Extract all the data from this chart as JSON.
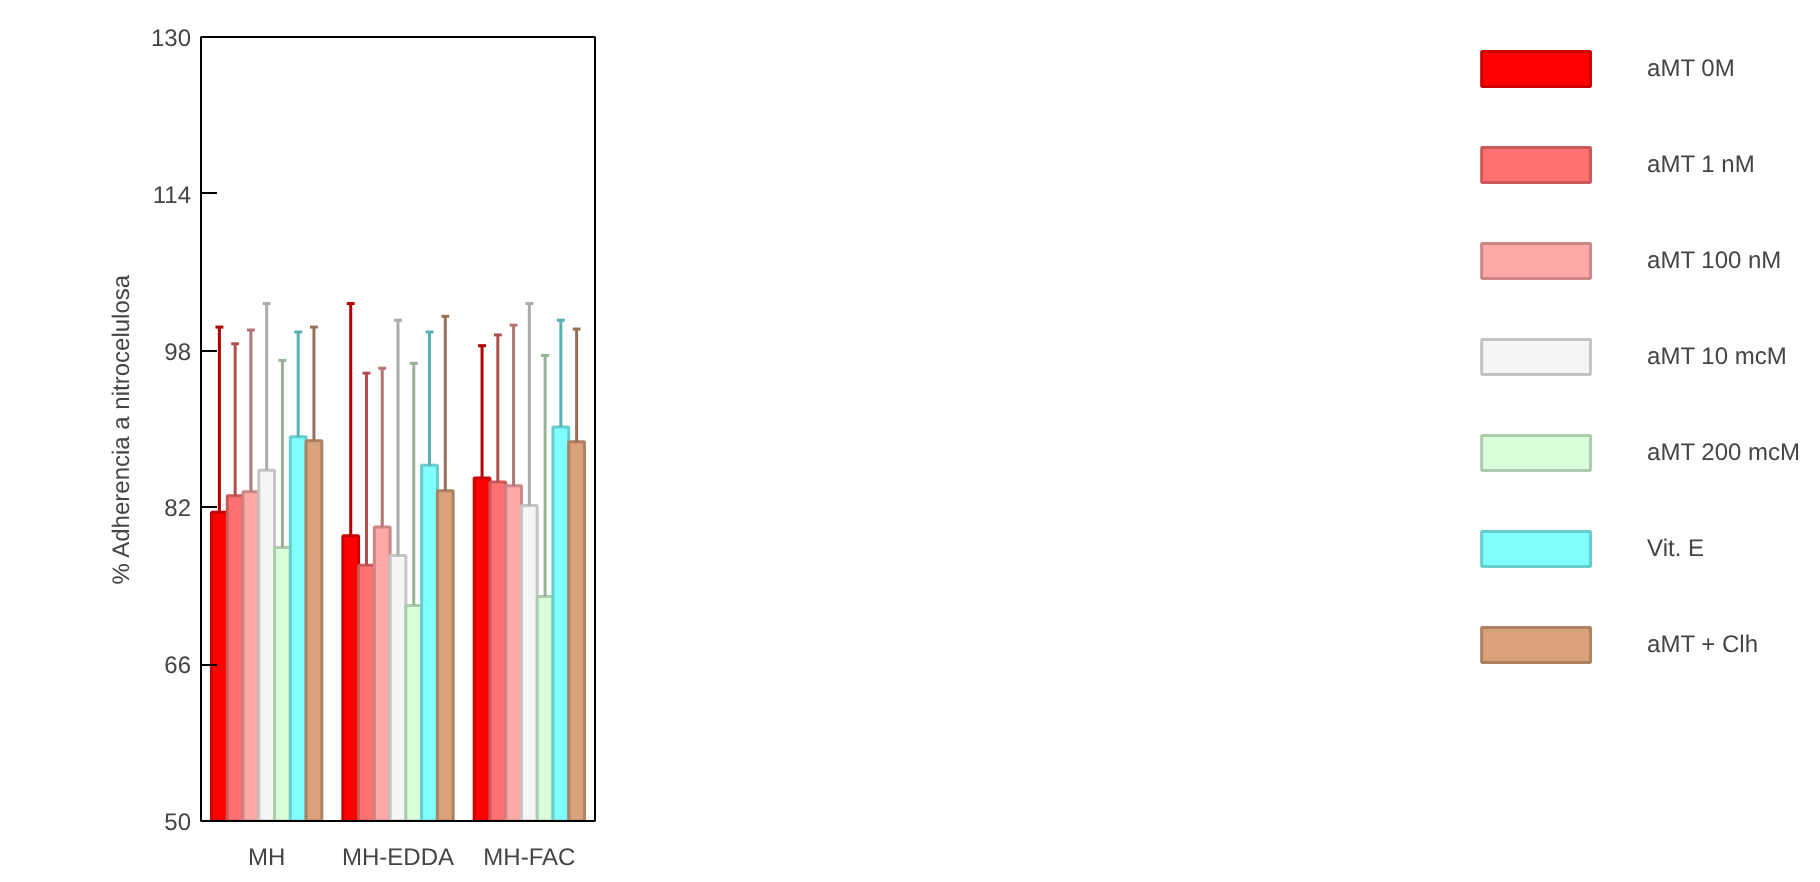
{
  "chart_data": {
    "type": "bar",
    "ylabel": "% Adherencia a nitrocelulosa",
    "categories": [
      "MH",
      "MH-EDDA",
      "MH-FAC"
    ],
    "ylim": [
      50,
      130
    ],
    "yticks": [
      50,
      66,
      82,
      98,
      114,
      130
    ],
    "grid": false,
    "legend": "right",
    "series": [
      {
        "name": "aMT 0M",
        "color": "#ff0000",
        "values": [
          81.5,
          79.1,
          85.0
        ],
        "errors": [
          [
            81.5,
            100.4
          ],
          [
            79.1,
            102.8
          ],
          [
            85.0,
            98.5
          ]
        ]
      },
      {
        "name": "aMT 1 nM",
        "color": "#ff7070",
        "values": [
          83.2,
          76.1,
          84.6
        ],
        "errors": [
          [
            83.2,
            98.7
          ],
          [
            76.1,
            95.7
          ],
          [
            84.6,
            99.6
          ]
        ]
      },
      {
        "name": "aMT 100 nM",
        "color": "#ffa8a8",
        "values": [
          83.6,
          80.0,
          84.2
        ],
        "errors": [
          [
            83.6,
            100.1
          ],
          [
            80.0,
            96.2
          ],
          [
            84.2,
            100.6
          ]
        ]
      },
      {
        "name": "aMT 10 mcM",
        "color": "#f5f5f5",
        "values": [
          85.8,
          77.1,
          82.2
        ],
        "errors": [
          [
            85.8,
            102.8
          ],
          [
            77.1,
            101.1
          ],
          [
            82.2,
            102.8
          ]
        ]
      },
      {
        "name": "aMT 200 mcM",
        "color": "#d9ffd9",
        "values": [
          77.9,
          72.0,
          72.9
        ],
        "errors": [
          [
            77.9,
            97.0
          ],
          [
            72.0,
            96.7
          ],
          [
            72.9,
            97.5
          ]
        ]
      },
      {
        "name": "Vit. E",
        "color": "#80ffff",
        "values": [
          89.2,
          86.3,
          90.2
        ],
        "errors": [
          [
            89.2,
            99.9
          ],
          [
            86.3,
            99.9
          ],
          [
            90.2,
            101.1
          ]
        ]
      },
      {
        "name": "aMT + Clh",
        "color": "#d9a27a",
        "values": [
          88.8,
          83.7,
          88.7
        ],
        "errors": [
          [
            88.8,
            100.4
          ],
          [
            83.7,
            101.5
          ],
          [
            88.7,
            100.2
          ]
        ]
      }
    ]
  }
}
